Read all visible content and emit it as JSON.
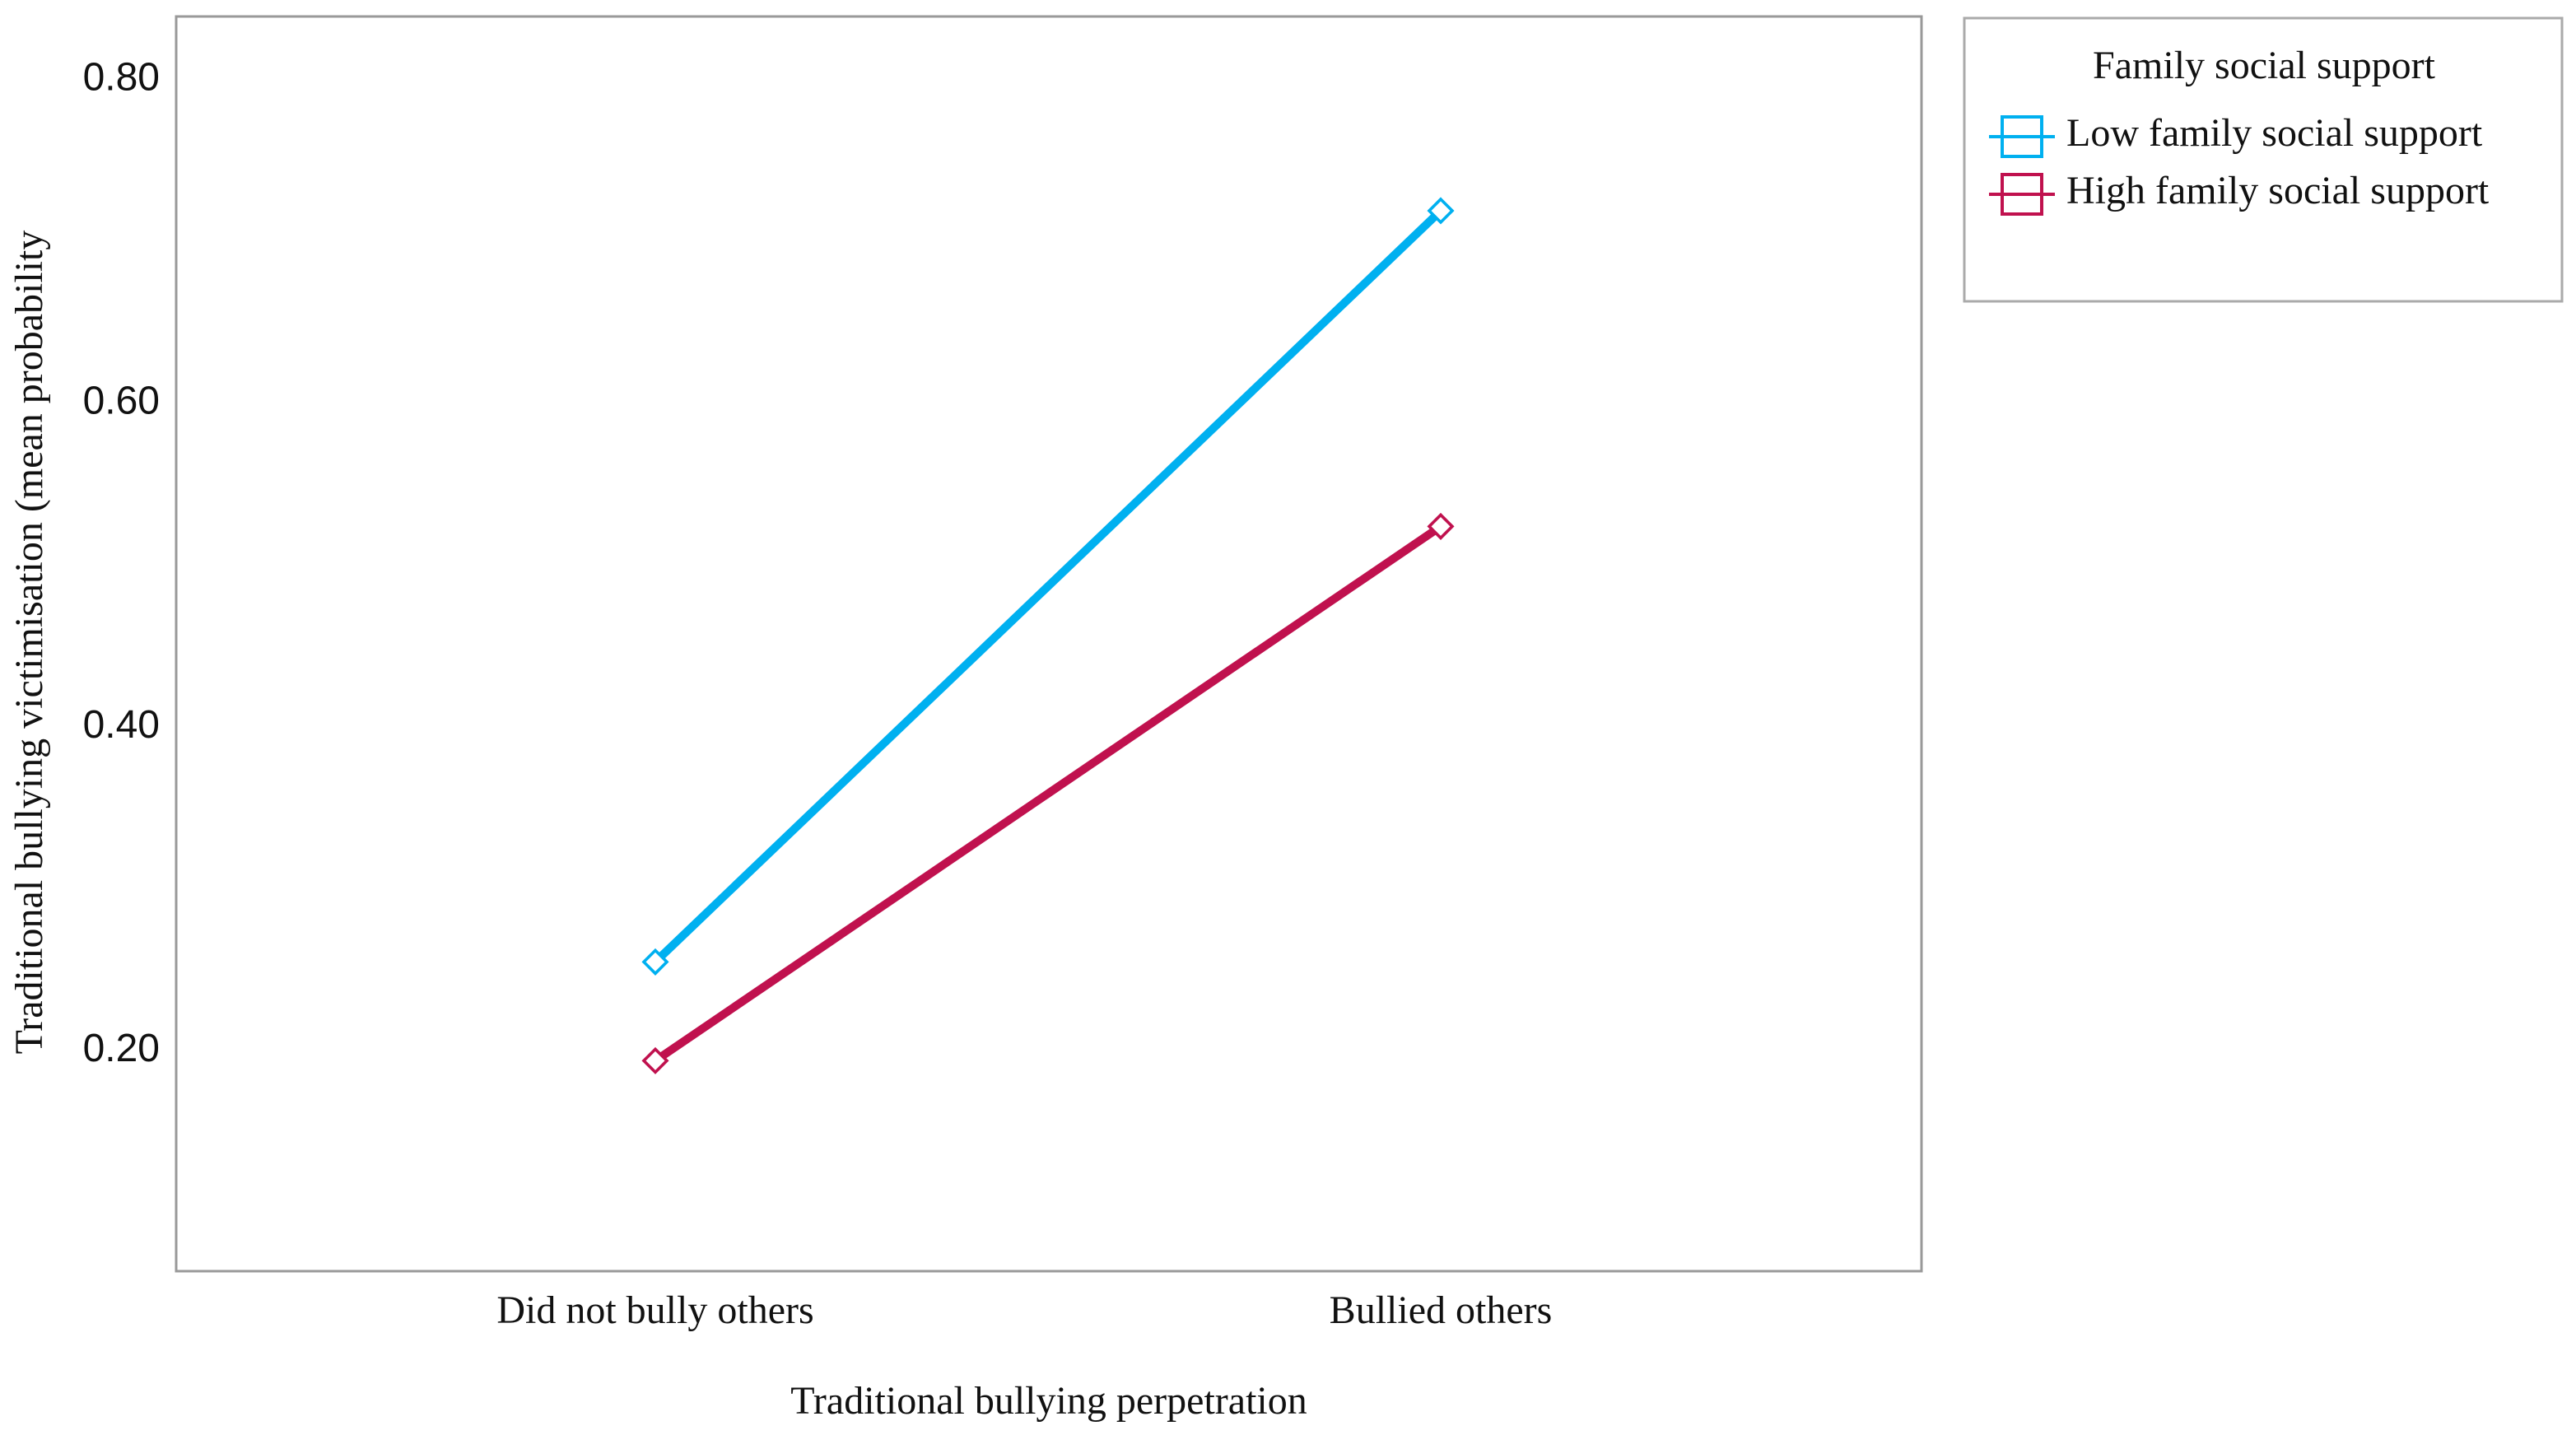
{
  "chart_data": {
    "type": "line",
    "x_label": "Traditional bullying perpetration",
    "y_label": "Traditional bullying victimisation (mean probability",
    "categories": [
      "Did not bully others",
      "Bullied others"
    ],
    "series": [
      {
        "name": "Low family social support",
        "color": "#00b0f0",
        "values": [
          0.255,
          0.719
        ]
      },
      {
        "name": "High family social support",
        "color": "#c0114e",
        "values": [
          0.194,
          0.524
        ]
      }
    ],
    "ylim": [
      0.064,
      0.839
    ],
    "yticks": [
      {
        "value": 0.2,
        "label": "0.20"
      },
      {
        "value": 0.4,
        "label": "0.40"
      },
      {
        "value": 0.6,
        "label": "0.60"
      },
      {
        "value": 0.8,
        "label": "0.80"
      }
    ],
    "legend_title": "Family social support",
    "legend_position": "outside-right",
    "grid": false
  }
}
